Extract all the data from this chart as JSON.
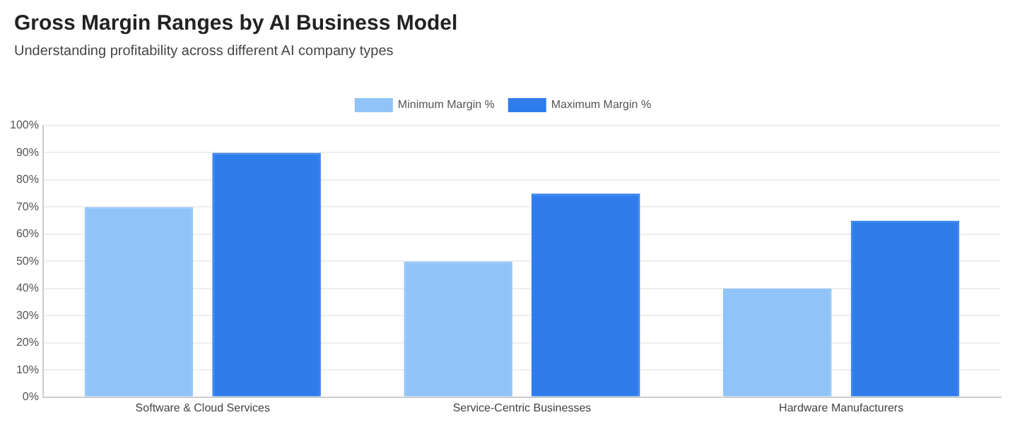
{
  "chart_data": {
    "type": "bar",
    "title": "Gross Margin Ranges by AI Business Model",
    "subtitle": "Understanding profitability across different AI company types",
    "categories": [
      "Software & Cloud Services",
      "Service-Centric Businesses",
      "Hardware Manufacturers"
    ],
    "series": [
      {
        "name": "Minimum Margin %",
        "color": "#90c4f9",
        "values": [
          70,
          50,
          40
        ]
      },
      {
        "name": "Maximum Margin %",
        "color": "#2f7ded",
        "values": [
          90,
          75,
          65
        ]
      }
    ],
    "ylim": [
      0,
      100
    ],
    "yticks": [
      {
        "value": 0,
        "label": "0%"
      },
      {
        "value": 10,
        "label": "10%"
      },
      {
        "value": 20,
        "label": "20%"
      },
      {
        "value": 30,
        "label": "30%"
      },
      {
        "value": 40,
        "label": "40%"
      },
      {
        "value": 50,
        "label": "50%"
      },
      {
        "value": 60,
        "label": "60%"
      },
      {
        "value": 70,
        "label": "70%"
      },
      {
        "value": 80,
        "label": "80%"
      },
      {
        "value": 90,
        "label": "90%"
      },
      {
        "value": 100,
        "label": "100%"
      }
    ],
    "grid": "y",
    "legend": "top"
  }
}
